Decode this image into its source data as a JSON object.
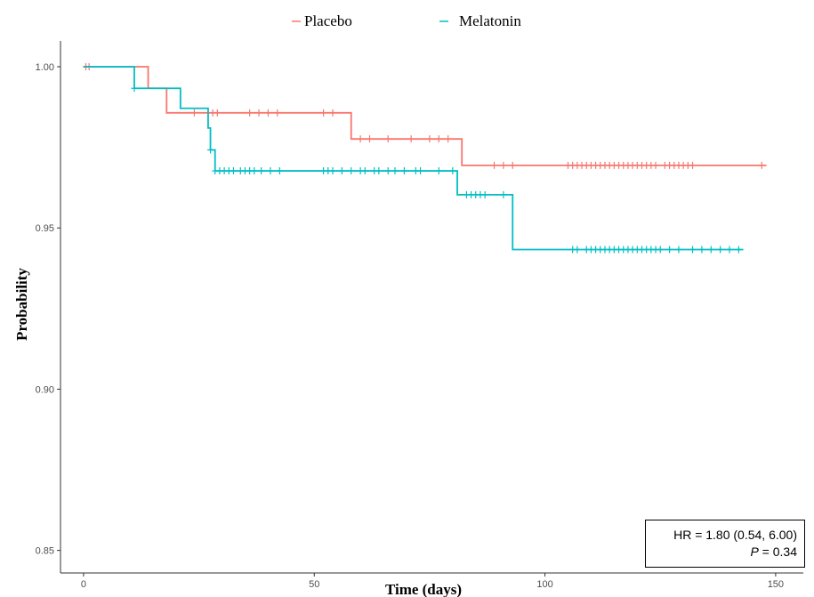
{
  "chart_data": {
    "type": "line",
    "title": "",
    "xlabel": "Time (days)",
    "ylabel": "Probability",
    "xlim": [
      -5,
      156
    ],
    "ylim": [
      0.843,
      1.008
    ],
    "xticks": [
      0,
      50,
      100,
      150
    ],
    "yticks": [
      0.85,
      0.9,
      0.95,
      1.0
    ],
    "xtick_labels": [
      "0",
      "50",
      "100",
      "150"
    ],
    "ytick_labels": [
      "0.85",
      "0.90",
      "0.95",
      "1.00"
    ],
    "grid": false,
    "legend_placement": "top",
    "series": [
      {
        "name": "Placebo",
        "color": "#f8766d",
        "steps": [
          [
            0,
            1.0
          ],
          [
            14,
            0.9933
          ],
          [
            18,
            0.9857
          ],
          [
            58,
            0.9776
          ],
          [
            82,
            0.9694
          ],
          [
            148,
            0.9694
          ]
        ],
        "censored": [
          0.5,
          1.2,
          24,
          28,
          29,
          36,
          38,
          40,
          42,
          52,
          54,
          60,
          62,
          66,
          71,
          75,
          77,
          79,
          89,
          91,
          93,
          105,
          106,
          107,
          108,
          109,
          110,
          111,
          112,
          113,
          114,
          115,
          116,
          117,
          118,
          119,
          120,
          121,
          122,
          123,
          124,
          126,
          127,
          128,
          129,
          130,
          131,
          132,
          147
        ]
      },
      {
        "name": "Melatonin",
        "color": "#00bfc4",
        "steps": [
          [
            0,
            1.0
          ],
          [
            11,
            0.9933
          ],
          [
            21,
            0.9871
          ],
          [
            27,
            0.981
          ],
          [
            27.5,
            0.9742
          ],
          [
            28.5,
            0.9677
          ],
          [
            81,
            0.9603
          ],
          [
            93,
            0.9433
          ],
          [
            143,
            0.9433
          ]
        ],
        "censored": [
          11,
          27.5,
          28.5,
          29.5,
          30.5,
          31.5,
          32.5,
          34,
          35,
          36,
          37,
          38.5,
          40.5,
          42.5,
          52,
          53,
          54,
          56,
          58,
          60,
          61,
          63,
          64,
          66,
          67.5,
          69.5,
          72,
          73,
          77,
          80,
          83,
          84,
          85,
          86,
          87,
          91,
          106,
          107,
          109,
          110,
          111,
          112,
          113,
          114,
          115,
          116,
          117,
          118,
          119,
          120,
          121,
          122,
          123,
          124,
          125,
          127,
          129,
          132,
          134,
          136,
          138,
          140,
          142
        ]
      }
    ],
    "annotation": {
      "hr_text": "HR = 1.80 (0.54, 6.00)",
      "p_prefix": "P",
      "p_suffix": " = 0.34"
    }
  }
}
